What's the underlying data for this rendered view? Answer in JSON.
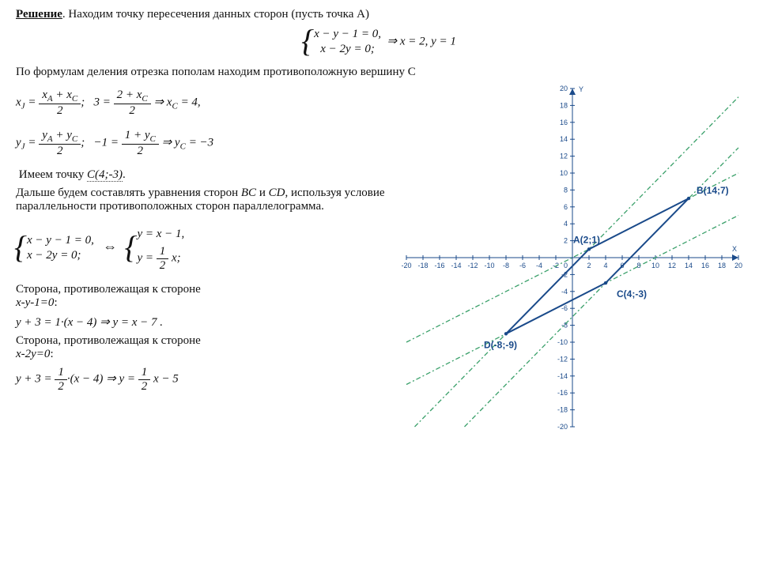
{
  "heading_label": "Решение",
  "heading_rest": ". Находим точку пересечения данных сторон (пусть точка А)",
  "sys1_line1": "x − y − 1 = 0,",
  "sys1_line2": "x − 2y = 0;",
  "sys1_result": "⇒ x = 2, y = 1",
  "para2": "По формулам деления отрезка пополам находим противоположную вершину C",
  "eq_xj_lhs_j": "J",
  "eq_xj": "x",
  "eq_xj_num": "x",
  "eq_xj_numA": "A",
  "eq_xj_numC": "C",
  "eq_xj_den": "2",
  "eq_xj_mid1": "3 =",
  "eq_xj_mid_num": "2 + x",
  "eq_xj_mid_sub": "C",
  "eq_xj_mid_den": "2",
  "eq_xj_res": "⇒ x",
  "eq_xj_resC": "C",
  "eq_xj_resV": " = 4,",
  "eq_yj": "y",
  "eq_yj_numA": "A",
  "eq_yj_numC": "C",
  "eq_yj_mid1": "−1 =",
  "eq_yj_mid_num": "1 + y",
  "eq_yj_res": "⇒ y",
  "eq_yj_resV": " = −3",
  "para3": "Имеем точку ",
  "pointC_text": "C(4;-3)",
  "para4a": "Дальше будем составлять уравнения сторон ",
  "para4b": "BC",
  "para4c": " и ",
  "para4d": "CD",
  "para4e": ", используя условие параллельности противоположных сторон параллелограмма.",
  "sys2_line1": "x − y − 1 = 0,",
  "sys2_line2": "x − 2y = 0;",
  "iff": "⇔",
  "sys3_line1": "y = x − 1,",
  "sys3_line2a": "y = ",
  "sys3_frac_num": "1",
  "sys3_frac_den": "2",
  "sys3_line2b": " x;",
  "para5": "Сторона, противолежащая к стороне x-y-1=0:",
  "eq5": "y + 3 = 1·(x − 4) ⇒ y = x − 7 .",
  "para6": "Сторона, противолежащая к стороне x-2y=0:",
  "eq6a": "y + 3 = ",
  "eq6b": "·(x − 4) ⇒ y = ",
  "eq6c": " x − 5",
  "graph": {
    "type": "parallelogram-on-cartesian",
    "xlim": [
      -20,
      20
    ],
    "ylim": [
      -20,
      20
    ],
    "tick_step": 2,
    "axis_color": "#1a4a8a",
    "tick_label_color": "#1a4a8a",
    "tick_fontsize": 9,
    "background_color": "#ffffff",
    "dashed_line_color": "#3aa06a",
    "dashed_pattern": "dash-dot",
    "shape_stroke_color": "#1a4a8a",
    "shape_stroke_width": 2,
    "points": {
      "A": {
        "x": 2,
        "y": 1,
        "label": "A(2;1)"
      },
      "B": {
        "x": 14,
        "y": 7,
        "label": "B(14;7)"
      },
      "C": {
        "x": 4,
        "y": -3,
        "label": "C(4;-3)"
      },
      "D": {
        "x": -8,
        "y": -9,
        "label": "D(-8;-9)"
      }
    },
    "polygon_order": [
      "A",
      "B",
      "C",
      "D"
    ],
    "dashed_lines": [
      {
        "desc": "y = x - 1",
        "slope": 1,
        "intercept": -1
      },
      {
        "desc": "y = 0.5 x",
        "slope": 0.5,
        "intercept": 0
      },
      {
        "desc": "y = x - 7",
        "slope": 1,
        "intercept": -7
      },
      {
        "desc": "y = 0.5x - 5",
        "slope": 0.5,
        "intercept": -5
      }
    ],
    "axis_labels": {
      "x": "X",
      "y": "Y"
    },
    "point_label_fontsize": 12
  }
}
